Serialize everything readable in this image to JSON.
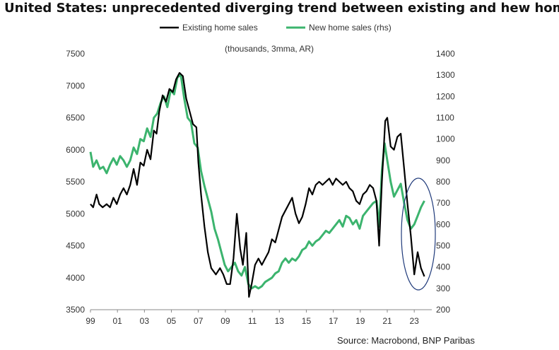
{
  "chart_data": {
    "type": "line",
    "title": "United States: unprecedented diverging trend between existing and hew home sales",
    "subtitle": "(thousands, 3mma, AR)",
    "source": "Source: Macrobond, BNP Paribas",
    "x_ticks": [
      "99",
      "01",
      "03",
      "05",
      "07",
      "09",
      "11",
      "13",
      "15",
      "17",
      "19",
      "21",
      "23"
    ],
    "x_range": [
      1999.0,
      2024.3
    ],
    "left_axis": {
      "ylim": [
        3500,
        7500
      ],
      "ticks": [
        "3500",
        "4000",
        "4500",
        "5000",
        "5500",
        "6000",
        "6500",
        "7000",
        "7500"
      ]
    },
    "right_axis": {
      "ylim": [
        200,
        1400
      ],
      "ticks": [
        "200",
        "300",
        "400",
        "500",
        "600",
        "700",
        "800",
        "900",
        "1000",
        "1100",
        "1200",
        "1300",
        "1400"
      ]
    },
    "legend": {
      "placement": "top"
    },
    "annotation": {
      "shape": "ellipse",
      "around": "2022-2023 divergence",
      "color": "#1f3a7a"
    },
    "series": [
      {
        "name": "Existing home sales",
        "axis": "left",
        "color": "#000000",
        "points": [
          [
            1999.0,
            5150
          ],
          [
            1999.2,
            5100
          ],
          [
            1999.45,
            5300
          ],
          [
            1999.65,
            5150
          ],
          [
            1999.9,
            5100
          ],
          [
            2000.2,
            5150
          ],
          [
            2000.45,
            5100
          ],
          [
            2000.7,
            5250
          ],
          [
            2000.95,
            5150
          ],
          [
            2001.2,
            5300
          ],
          [
            2001.45,
            5400
          ],
          [
            2001.7,
            5300
          ],
          [
            2001.95,
            5450
          ],
          [
            2002.2,
            5700
          ],
          [
            2002.45,
            5450
          ],
          [
            2002.7,
            5800
          ],
          [
            2002.95,
            5750
          ],
          [
            2003.2,
            6000
          ],
          [
            2003.45,
            5850
          ],
          [
            2003.7,
            6300
          ],
          [
            2003.9,
            6250
          ],
          [
            2004.1,
            6600
          ],
          [
            2004.35,
            6850
          ],
          [
            2004.6,
            6750
          ],
          [
            2004.85,
            6950
          ],
          [
            2005.1,
            6900
          ],
          [
            2005.35,
            7100
          ],
          [
            2005.6,
            7200
          ],
          [
            2005.85,
            7150
          ],
          [
            2006.1,
            6800
          ],
          [
            2006.35,
            6600
          ],
          [
            2006.6,
            6400
          ],
          [
            2006.85,
            6350
          ],
          [
            2007.0,
            5800
          ],
          [
            2007.2,
            5300
          ],
          [
            2007.45,
            4800
          ],
          [
            2007.7,
            4400
          ],
          [
            2007.95,
            4150
          ],
          [
            2008.3,
            4050
          ],
          [
            2008.6,
            4150
          ],
          [
            2008.85,
            4050
          ],
          [
            2009.1,
            3900
          ],
          [
            2009.35,
            3900
          ],
          [
            2009.6,
            4300
          ],
          [
            2009.85,
            5000
          ],
          [
            2010.1,
            4450
          ],
          [
            2010.3,
            4200
          ],
          [
            2010.55,
            4700
          ],
          [
            2010.75,
            3700
          ],
          [
            2010.95,
            3900
          ],
          [
            2011.2,
            4200
          ],
          [
            2011.45,
            4300
          ],
          [
            2011.7,
            4200
          ],
          [
            2011.95,
            4300
          ],
          [
            2012.2,
            4400
          ],
          [
            2012.45,
            4600
          ],
          [
            2012.7,
            4550
          ],
          [
            2012.95,
            4750
          ],
          [
            2013.2,
            4950
          ],
          [
            2013.45,
            5050
          ],
          [
            2013.7,
            5150
          ],
          [
            2013.95,
            5250
          ],
          [
            2014.2,
            5000
          ],
          [
            2014.45,
            4850
          ],
          [
            2014.7,
            4950
          ],
          [
            2014.95,
            5150
          ],
          [
            2015.2,
            5400
          ],
          [
            2015.45,
            5300
          ],
          [
            2015.7,
            5450
          ],
          [
            2015.95,
            5500
          ],
          [
            2016.2,
            5450
          ],
          [
            2016.45,
            5500
          ],
          [
            2016.7,
            5550
          ],
          [
            2016.95,
            5450
          ],
          [
            2017.2,
            5550
          ],
          [
            2017.45,
            5500
          ],
          [
            2017.7,
            5450
          ],
          [
            2017.95,
            5500
          ],
          [
            2018.2,
            5400
          ],
          [
            2018.45,
            5350
          ],
          [
            2018.7,
            5200
          ],
          [
            2018.95,
            5150
          ],
          [
            2019.2,
            5300
          ],
          [
            2019.45,
            5350
          ],
          [
            2019.7,
            5450
          ],
          [
            2019.95,
            5400
          ],
          [
            2020.2,
            5200
          ],
          [
            2020.4,
            4500
          ],
          [
            2020.6,
            5500
          ],
          [
            2020.85,
            6450
          ],
          [
            2021.0,
            6500
          ],
          [
            2021.25,
            6050
          ],
          [
            2021.5,
            6000
          ],
          [
            2021.75,
            6200
          ],
          [
            2022.0,
            6250
          ],
          [
            2022.25,
            5700
          ],
          [
            2022.5,
            5150
          ],
          [
            2022.75,
            4650
          ],
          [
            2023.0,
            4050
          ],
          [
            2023.25,
            4400
          ],
          [
            2023.5,
            4150
          ],
          [
            2023.75,
            4020
          ]
        ]
      },
      {
        "name": "New home sales (rhs)",
        "axis": "right",
        "color": "#3cb46e",
        "points": [
          [
            1999.0,
            940
          ],
          [
            1999.2,
            870
          ],
          [
            1999.45,
            900
          ],
          [
            1999.7,
            860
          ],
          [
            1999.95,
            870
          ],
          [
            2000.2,
            840
          ],
          [
            2000.45,
            880
          ],
          [
            2000.7,
            910
          ],
          [
            2000.95,
            880
          ],
          [
            2001.2,
            920
          ],
          [
            2001.45,
            900
          ],
          [
            2001.7,
            870
          ],
          [
            2001.95,
            900
          ],
          [
            2002.2,
            960
          ],
          [
            2002.45,
            930
          ],
          [
            2002.7,
            1000
          ],
          [
            2002.95,
            990
          ],
          [
            2003.2,
            1050
          ],
          [
            2003.45,
            1010
          ],
          [
            2003.7,
            1100
          ],
          [
            2003.95,
            1120
          ],
          [
            2004.2,
            1170
          ],
          [
            2004.45,
            1200
          ],
          [
            2004.7,
            1150
          ],
          [
            2004.95,
            1230
          ],
          [
            2005.2,
            1210
          ],
          [
            2005.45,
            1290
          ],
          [
            2005.7,
            1300
          ],
          [
            2005.95,
            1190
          ],
          [
            2006.2,
            1100
          ],
          [
            2006.45,
            1080
          ],
          [
            2006.7,
            980
          ],
          [
            2006.95,
            960
          ],
          [
            2007.2,
            850
          ],
          [
            2007.45,
            780
          ],
          [
            2007.7,
            720
          ],
          [
            2007.95,
            660
          ],
          [
            2008.2,
            580
          ],
          [
            2008.45,
            530
          ],
          [
            2008.7,
            470
          ],
          [
            2008.95,
            410
          ],
          [
            2009.2,
            380
          ],
          [
            2009.45,
            400
          ],
          [
            2009.7,
            420
          ],
          [
            2009.95,
            380
          ],
          [
            2010.2,
            360
          ],
          [
            2010.45,
            400
          ],
          [
            2010.7,
            320
          ],
          [
            2010.95,
            300
          ],
          [
            2011.2,
            310
          ],
          [
            2011.45,
            300
          ],
          [
            2011.7,
            310
          ],
          [
            2011.95,
            330
          ],
          [
            2012.2,
            340
          ],
          [
            2012.45,
            350
          ],
          [
            2012.7,
            370
          ],
          [
            2012.95,
            380
          ],
          [
            2013.2,
            420
          ],
          [
            2013.45,
            440
          ],
          [
            2013.7,
            420
          ],
          [
            2013.95,
            440
          ],
          [
            2014.2,
            430
          ],
          [
            2014.45,
            450
          ],
          [
            2014.7,
            480
          ],
          [
            2014.95,
            490
          ],
          [
            2015.2,
            520
          ],
          [
            2015.45,
            500
          ],
          [
            2015.7,
            520
          ],
          [
            2015.95,
            530
          ],
          [
            2016.2,
            550
          ],
          [
            2016.45,
            570
          ],
          [
            2016.7,
            560
          ],
          [
            2016.95,
            580
          ],
          [
            2017.2,
            600
          ],
          [
            2017.45,
            620
          ],
          [
            2017.7,
            590
          ],
          [
            2017.95,
            640
          ],
          [
            2018.2,
            630
          ],
          [
            2018.45,
            600
          ],
          [
            2018.7,
            620
          ],
          [
            2018.95,
            580
          ],
          [
            2019.2,
            640
          ],
          [
            2019.45,
            660
          ],
          [
            2019.7,
            680
          ],
          [
            2019.95,
            700
          ],
          [
            2020.2,
            710
          ],
          [
            2020.4,
            590
          ],
          [
            2020.6,
            850
          ],
          [
            2020.8,
            980
          ],
          [
            2021.0,
            900
          ],
          [
            2021.25,
            800
          ],
          [
            2021.5,
            730
          ],
          [
            2021.75,
            760
          ],
          [
            2022.0,
            790
          ],
          [
            2022.25,
            700
          ],
          [
            2022.5,
            620
          ],
          [
            2022.75,
            580
          ],
          [
            2023.0,
            600
          ],
          [
            2023.25,
            640
          ],
          [
            2023.5,
            680
          ],
          [
            2023.75,
            710
          ]
        ]
      }
    ]
  }
}
